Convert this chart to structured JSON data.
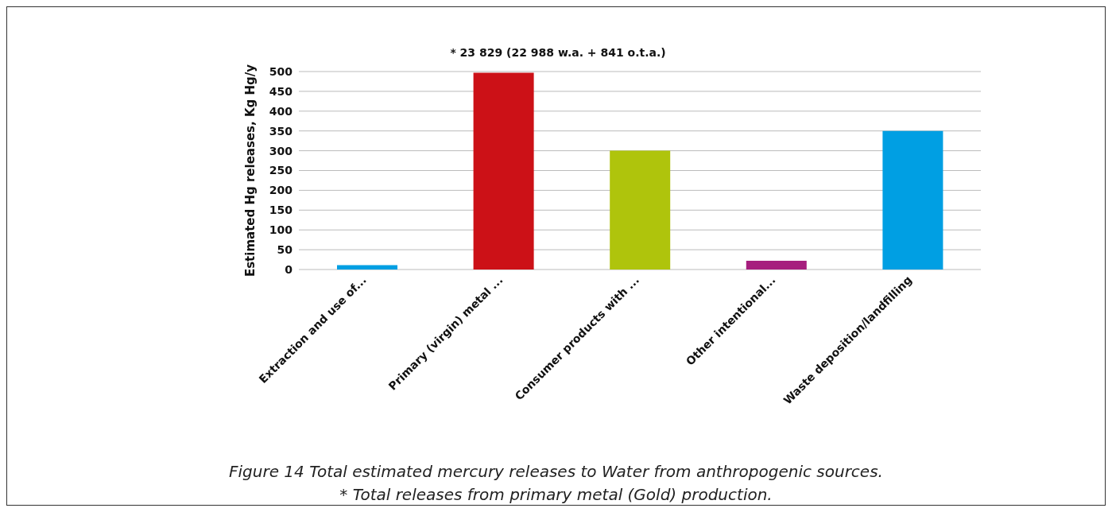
{
  "chart_data": {
    "type": "bar",
    "ylabel": "Estimated Hg releases, Kg Hg/y",
    "categories": [
      "Extraction and use of...",
      "Primary (virgin) metal ...",
      "Consumer products with ...",
      "Other intentional...",
      "Waste deposition/landfilling"
    ],
    "values": [
      11,
      497,
      300,
      22,
      350
    ],
    "colors": [
      "#009fe3",
      "#cc1117",
      "#afc40c",
      "#a61e7e",
      "#009fe3"
    ],
    "ylim": [
      0,
      500
    ],
    "yticks": [
      0,
      50,
      100,
      150,
      200,
      250,
      300,
      350,
      400,
      450,
      500
    ],
    "grid": "y",
    "annotations": [
      "* 23 829 (22 988 w.a. + 841 o.t.a.)",
      "Figure 14 Total estimated mercury releases to Water from anthropogenic sources.",
      "* Total releases from primary metal (Gold) production."
    ]
  }
}
